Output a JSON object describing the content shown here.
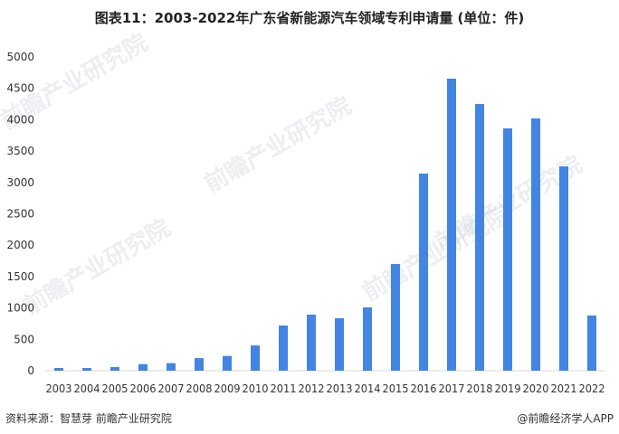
{
  "title": "图表11：2003-2022年广东省新能源汽车领域专利申请量 (单位：件)",
  "source": "资料来源：智慧芽 前瞻产业研究院",
  "credit": "@前瞻经济学人APP",
  "watermark": "前瞻产业研究院",
  "colors": {
    "bar": "#4285e3",
    "axis": "#d9d9d9",
    "text": "#333333"
  },
  "chart_data": {
    "type": "bar",
    "title": "图表11：2003-2022年广东省新能源汽车领域专利申请量 (单位：件)",
    "xlabel": "",
    "ylabel": "",
    "ylim": [
      0,
      5000
    ],
    "yticks": [
      0,
      500,
      1000,
      1500,
      2000,
      2500,
      3000,
      3500,
      4000,
      4500,
      5000
    ],
    "grid": false,
    "categories": [
      "2003",
      "2004",
      "2005",
      "2006",
      "2007",
      "2008",
      "2009",
      "2010",
      "2011",
      "2012",
      "2013",
      "2014",
      "2015",
      "2016",
      "2017",
      "2018",
      "2019",
      "2020",
      "2021",
      "2022"
    ],
    "values": [
      43,
      43,
      58,
      105,
      120,
      200,
      235,
      403,
      720,
      893,
      836,
      1009,
      1700,
      3141,
      4654,
      4250,
      3862,
      4020,
      3256,
      880
    ]
  }
}
